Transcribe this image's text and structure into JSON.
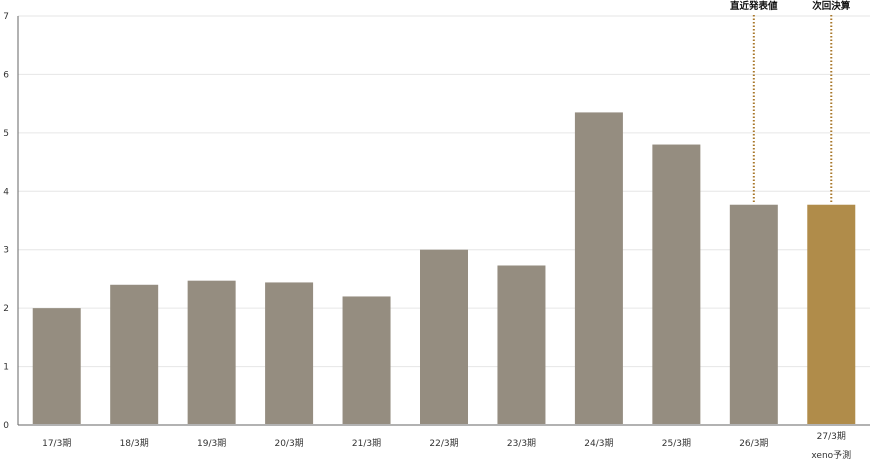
{
  "chart_data": {
    "type": "bar",
    "title": "",
    "xlabel": "",
    "ylabel": "",
    "ylim": [
      0,
      7
    ],
    "yticks": [
      0,
      1,
      2,
      3,
      4,
      5,
      6,
      7
    ],
    "grid": true,
    "categories": [
      "17/3期",
      "18/3期",
      "19/3期",
      "20/3期",
      "21/3期",
      "22/3期",
      "23/3期",
      "24/3期",
      "25/3期",
      "26/3期",
      "27/3期"
    ],
    "forecast_sublabel": "xeno予測",
    "values": [
      2.0,
      2.4,
      2.47,
      2.44,
      2.2,
      3.0,
      2.73,
      5.35,
      4.8,
      3.77,
      3.77
    ],
    "colors": {
      "actual": "#958d80",
      "forecast": "#b08c4a",
      "marker_line": "#a8772a",
      "grid": "#e6e6e6",
      "axis": "#666666"
    },
    "markers": [
      {
        "category_index": 9,
        "label": "直近発表値"
      },
      {
        "category_index": 10,
        "label": "次回決算"
      }
    ]
  }
}
